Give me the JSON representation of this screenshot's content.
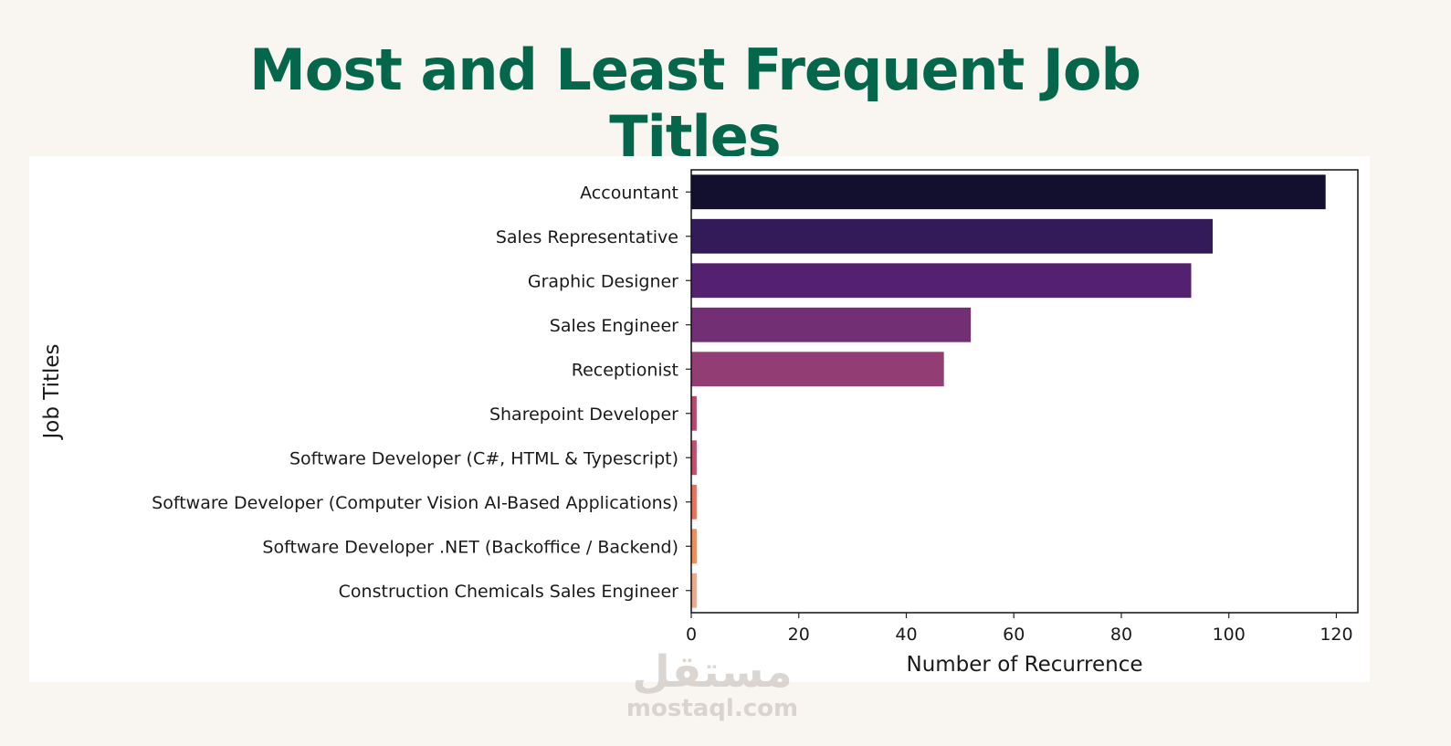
{
  "title": "Most and Least Frequent Job Titles",
  "colors": {
    "title": "#04674c",
    "background": "#f9f5f1",
    "panel": "#ffffff"
  },
  "watermark": {
    "text_arabic": "مستقل",
    "text_latin": "mostaql.com"
  },
  "chart_data": {
    "type": "bar",
    "orientation": "horizontal",
    "xlabel": "Number of Recurrence",
    "ylabel": "Job Titles",
    "xlim": [
      0,
      124
    ],
    "xticks": [
      0,
      20,
      40,
      60,
      80,
      100,
      120
    ],
    "grid": false,
    "categories": [
      "Accountant",
      "Sales Representative",
      "Graphic Designer",
      "Sales Engineer",
      "Receptionist",
      "Sharepoint Developer",
      "Software Developer (C#, HTML & Typescript)",
      "Software Developer (Computer Vision AI-Based Applications)",
      "Software Developer .NET (Backoffice / Backend)",
      "Construction Chemicals Sales Engineer"
    ],
    "values": [
      118,
      97,
      93,
      52,
      47,
      1,
      1,
      1,
      1,
      1
    ],
    "bar_colors": [
      "#130f2e",
      "#331a58",
      "#542070",
      "#722f74",
      "#923e74",
      "#b9476d",
      "#c24e6b",
      "#e7715b",
      "#ef8c5b",
      "#e8a98c"
    ]
  }
}
